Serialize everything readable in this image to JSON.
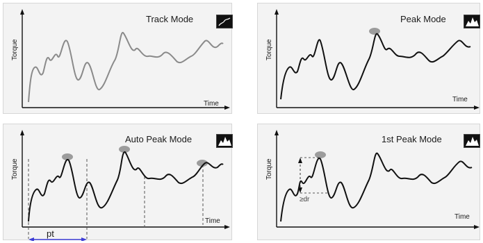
{
  "panels": [
    {
      "title": "Track Mode",
      "ylabel": "Torque",
      "xlabel": "Time",
      "icon": "track-mode-icon"
    },
    {
      "title": "Peak Mode",
      "ylabel": "Torque",
      "xlabel": "Time",
      "icon": "peak-mode-icon"
    },
    {
      "title": "Auto Peak Mode",
      "ylabel": "Torque",
      "xlabel": "Time",
      "icon": "auto-peak-mode-icon",
      "interval_label": "pt"
    },
    {
      "title": "1st Peak Mode",
      "ylabel": "Torque",
      "xlabel": "Time",
      "icon": "first-peak-mode-icon",
      "drop_label": "≥dr"
    }
  ],
  "colors": {
    "panel_bg": "#f3f3f3",
    "track_curve": "#8a8a8a",
    "peak_curve": "#111111",
    "peak_marker": "#9c9c9c",
    "interval_arrow": "#3d3dd6"
  }
}
